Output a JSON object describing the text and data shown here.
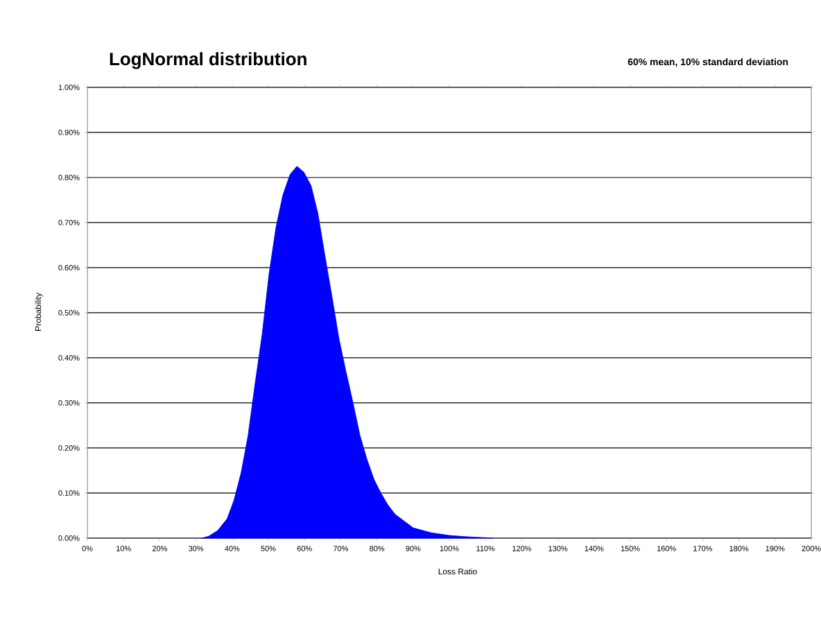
{
  "chart_data": {
    "type": "area",
    "title": "LogNormal distribution",
    "subtitle": "60% mean, 10% standard deviation",
    "xlabel": "Loss Ratio",
    "ylabel": "Probability",
    "x": [
      31.5,
      33.5,
      36,
      38.6,
      40.5,
      42.5,
      44.4,
      46.3,
      48.3,
      50.2,
      52.1,
      54,
      56,
      57.9,
      59.8,
      61.8,
      63.7,
      65.6,
      67.6,
      69.5,
      71.4,
      73.4,
      75.3,
      77.2,
      79.2,
      81.1,
      83,
      85,
      87.5,
      90,
      95,
      100,
      105,
      110,
      112
    ],
    "series": [
      {
        "color": "#0000ff",
        "values": [
          0,
          0.004,
          0.017,
          0.043,
          0.084,
          0.146,
          0.228,
          0.341,
          0.453,
          0.587,
          0.689,
          0.761,
          0.807,
          0.825,
          0.812,
          0.782,
          0.72,
          0.628,
          0.535,
          0.443,
          0.371,
          0.3,
          0.228,
          0.176,
          0.13,
          0.1,
          0.074,
          0.053,
          0.038,
          0.023,
          0.012,
          0.006,
          0.003,
          0.001,
          0
        ]
      }
    ],
    "xlim": [
      0,
      200
    ],
    "xticks": [
      {
        "value": 0,
        "label": "0%"
      },
      {
        "value": 10,
        "label": "10%"
      },
      {
        "value": 20,
        "label": "20%"
      },
      {
        "value": 30,
        "label": "30%"
      },
      {
        "value": 40,
        "label": "40%"
      },
      {
        "value": 50,
        "label": "50%"
      },
      {
        "value": 60,
        "label": "60%"
      },
      {
        "value": 70,
        "label": "70%"
      },
      {
        "value": 80,
        "label": "80%"
      },
      {
        "value": 90,
        "label": "90%"
      },
      {
        "value": 100,
        "label": "100%"
      },
      {
        "value": 110,
        "label": "110%"
      },
      {
        "value": 120,
        "label": "120%"
      },
      {
        "value": 130,
        "label": "130%"
      },
      {
        "value": 140,
        "label": "140%"
      },
      {
        "value": 150,
        "label": "150%"
      },
      {
        "value": 160,
        "label": "160%"
      },
      {
        "value": 170,
        "label": "170%"
      },
      {
        "value": 180,
        "label": "180%"
      },
      {
        "value": 190,
        "label": "190%"
      },
      {
        "value": 200,
        "label": "200%"
      }
    ],
    "ylim": [
      0,
      1
    ],
    "yticks": [
      {
        "value": 0,
        "label": "0.00%"
      },
      {
        "value": 0.1,
        "label": "0.10%"
      },
      {
        "value": 0.2,
        "label": "0.20%"
      },
      {
        "value": 0.3,
        "label": "0.30%"
      },
      {
        "value": 0.4,
        "label": "0.40%"
      },
      {
        "value": 0.5,
        "label": "0.50%"
      },
      {
        "value": 0.6,
        "label": "0.60%"
      },
      {
        "value": 0.7,
        "label": "0.70%"
      },
      {
        "value": 0.8,
        "label": "0.80%"
      },
      {
        "value": 0.9,
        "label": "0.90%"
      },
      {
        "value": 1,
        "label": "1.00%"
      }
    ],
    "grid": "y"
  }
}
